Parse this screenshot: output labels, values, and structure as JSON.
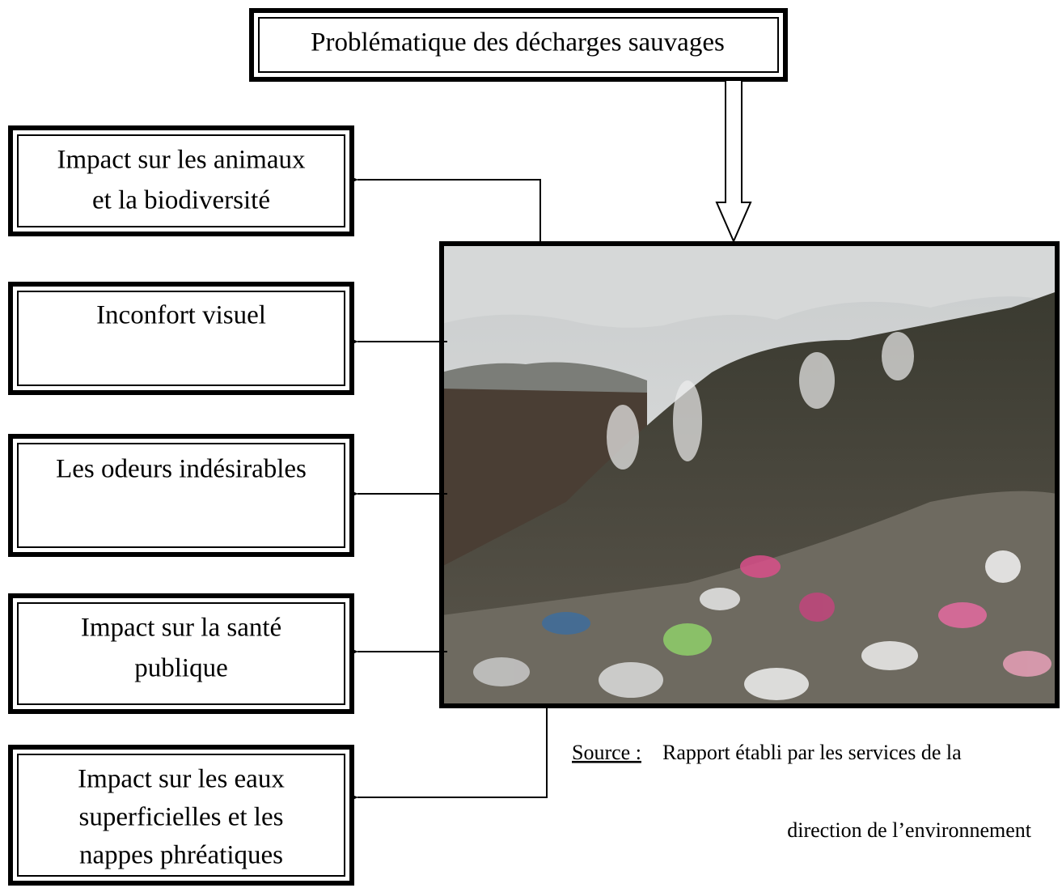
{
  "title": "Problématique des décharges sauvages",
  "nodes": [
    {
      "lines": [
        "Impact sur les animaux",
        "et la biodiversité"
      ]
    },
    {
      "lines": [
        "Inconfort visuel"
      ]
    },
    {
      "lines": [
        "Les odeurs indésirables"
      ]
    },
    {
      "lines": [
        "Impact sur la santé",
        "publique"
      ]
    },
    {
      "lines": [
        "Impact sur les eaux",
        "superficielles et les",
        "nappes phréatiques"
      ]
    }
  ],
  "source": {
    "label": "Source :",
    "lines": [
      "Rapport établi par les services de la",
      "direction de l’environnement"
    ]
  }
}
